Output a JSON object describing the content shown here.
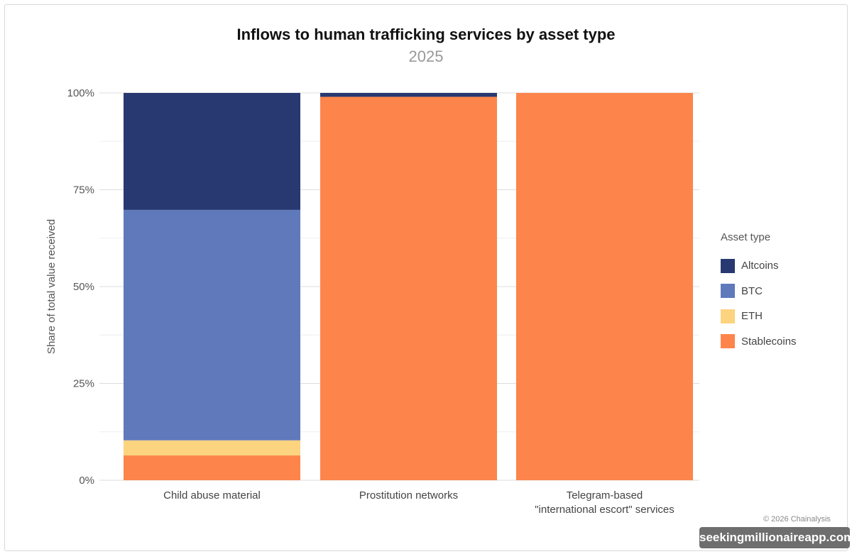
{
  "chart_data": {
    "type": "bar",
    "stacked": true,
    "title": "Inflows to human trafficking services by asset type",
    "subtitle": "2025",
    "xlabel": "",
    "ylabel": "Share of total value received",
    "ylim": [
      0,
      100
    ],
    "yticks": [
      "0%",
      "25%",
      "50%",
      "75%",
      "100%"
    ],
    "categories": [
      "Child abuse material",
      "Prostitution networks",
      "Telegram-based\n\"international escort\" services"
    ],
    "legend_title": "Asset type",
    "legend_position": "right",
    "grid": true,
    "series": [
      {
        "name": "Stablecoins",
        "color": "#fd854b",
        "values": [
          6.4,
          99.0,
          100
        ]
      },
      {
        "name": "ETH",
        "color": "#fcd37f",
        "values": [
          3.9,
          0,
          0
        ]
      },
      {
        "name": "BTC",
        "color": "#6079bb",
        "values": [
          59.5,
          0,
          0
        ]
      },
      {
        "name": "Altcoins",
        "color": "#283870",
        "values": [
          30.2,
          1.0,
          0
        ]
      }
    ],
    "legend_order": [
      "Altcoins",
      "BTC",
      "ETH",
      "Stablecoins"
    ]
  },
  "copyright": "© 2026 Chainalysis",
  "watermark": "seekingmillionaireapp.com"
}
